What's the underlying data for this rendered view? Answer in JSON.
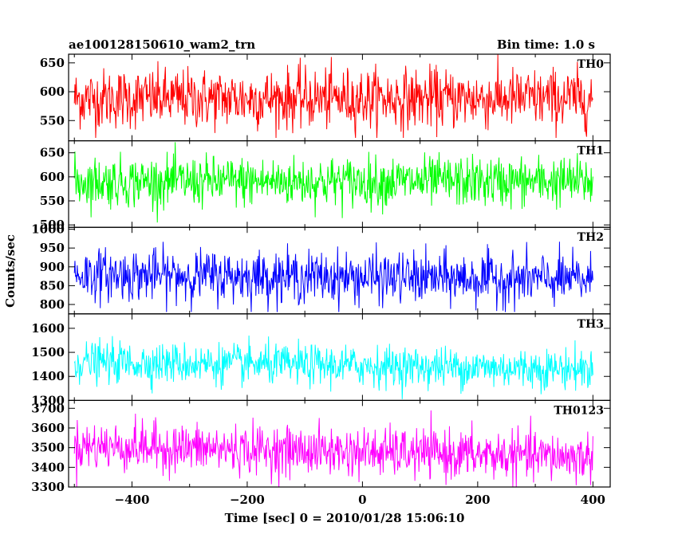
{
  "header": {
    "title": "ae100128150610_wam2_trn",
    "bin_time": "Bin time: 1.0 s"
  },
  "chart_data": {
    "type": "line",
    "xlabel": "Time [sec] 0 = 2010/01/28 15:06:10",
    "ylabel": "Counts/sec",
    "xlim": [
      -510,
      430
    ],
    "x_ticks": [
      -400,
      -200,
      0,
      200,
      400
    ],
    "x_tick_labels": [
      "−400",
      "−200",
      "0",
      "200",
      "400"
    ],
    "x_data_range": [
      -500,
      400
    ],
    "bin_seconds": 1.0,
    "panels": [
      {
        "name": "TH0",
        "color": "#ff0000",
        "ylim": [
          515,
          665
        ],
        "ticks": [
          550,
          600,
          650
        ],
        "tick_labels": [
          "550",
          "600",
          "650"
        ],
        "mean": 588,
        "noise": 26,
        "clip": [
          520,
          665
        ],
        "trend": 0
      },
      {
        "name": "TH1",
        "color": "#00ff00",
        "ylim": [
          495,
          675
        ],
        "ticks": [
          500,
          550,
          600,
          650
        ],
        "tick_labels": [
          "500",
          "550",
          "600",
          "650"
        ],
        "mean": 590,
        "noise": 26,
        "clip": [
          505,
          675
        ],
        "trend": 0
      },
      {
        "name": "TH2",
        "color": "#0000ff",
        "ylim": [
          775,
          1005
        ],
        "ticks": [
          800,
          850,
          900,
          950,
          1000
        ],
        "tick_labels": [
          "800",
          "850",
          "900",
          "950",
          "1000"
        ],
        "mean": 880,
        "noise": 34,
        "clip": [
          780,
          1005
        ],
        "trend": -15
      },
      {
        "name": "TH3",
        "color": "#00ffff",
        "ylim": [
          1300,
          1660
        ],
        "ticks": [
          1300,
          1400,
          1500,
          1600
        ],
        "tick_labels": [
          "1300",
          "1400",
          "1500",
          "1600"
        ],
        "mean": 1460,
        "noise": 42,
        "clip": [
          1305,
          1655
        ],
        "trend": -30
      },
      {
        "name": "TH0123",
        "color": "#ff00ff",
        "ylim": [
          3300,
          3740
        ],
        "ticks": [
          3300,
          3400,
          3500,
          3600,
          3700
        ],
        "tick_labels": [
          "3300",
          "3400",
          "3500",
          "3600",
          "3700"
        ],
        "mean": 3510,
        "noise": 62,
        "clip": [
          3300,
          3730
        ],
        "trend": -60
      }
    ]
  }
}
